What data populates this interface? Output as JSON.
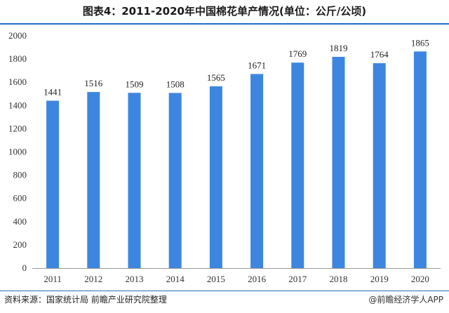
{
  "title": "图表4：2011-2020年中国棉花单产情况(单位：公斤/公顷)",
  "source": "资料来源：国家统计局 前瞻产业研究院整理",
  "credit": "@前瞻经济学人APP",
  "colors": {
    "bar": "#3d86e0",
    "title_rule": "#1f6fbf"
  },
  "chart_data": {
    "type": "bar",
    "title": "图表4：2011-2020年中国棉花单产情况(单位：公斤/公顷)",
    "xlabel": "",
    "ylabel": "",
    "categories": [
      "2011",
      "2012",
      "2013",
      "2014",
      "2015",
      "2016",
      "2017",
      "2018",
      "2019",
      "2020"
    ],
    "values": [
      1441,
      1516,
      1509,
      1508,
      1565,
      1671,
      1769,
      1819,
      1764,
      1865
    ],
    "ylim": [
      0,
      2000
    ],
    "yticks": [
      0,
      200,
      400,
      600,
      800,
      1000,
      1200,
      1400,
      1600,
      1800,
      2000
    ],
    "grid": false,
    "data_labels": true
  }
}
